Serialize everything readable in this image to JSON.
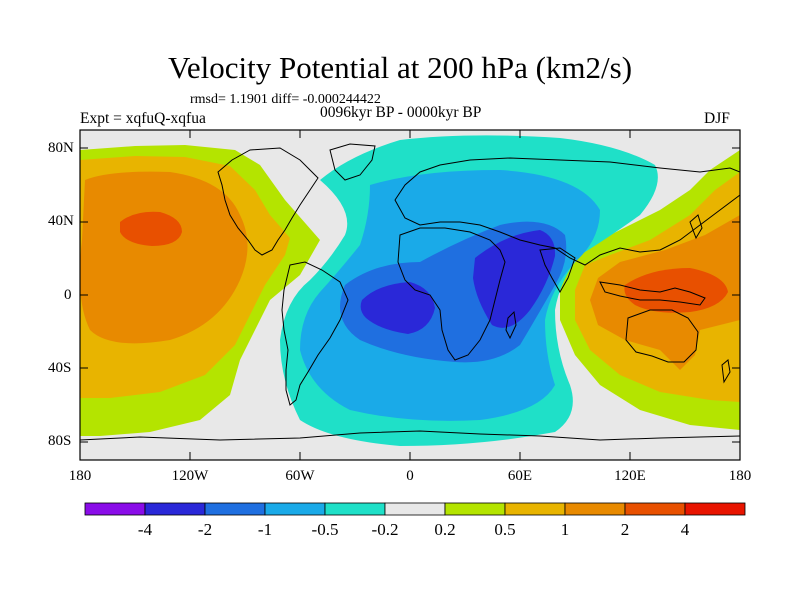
{
  "title": "Velocity Potential at 200 hPa (km2/s)",
  "stats_line": "rmsd= 1.1901 diff= -0.000244422",
  "experiment_label": "Expt = xqfuQ-xqfua",
  "period_label": "0096kyr BP - 0000kyr BP",
  "season_label": "DJF",
  "axes": {
    "x_ticks": [
      "180",
      "120W",
      "60W",
      "0",
      "60E",
      "120E",
      "180"
    ],
    "y_ticks": [
      "80N",
      "40N",
      "0",
      "40S",
      "80S"
    ]
  },
  "colorbar": {
    "colors": [
      "#8a0ce8",
      "#2a28d8",
      "#1f6fe0",
      "#1aaae8",
      "#1fe0c8",
      "#e8e8e8",
      "#b4e400",
      "#e8b400",
      "#e88a00",
      "#e85000",
      "#e81400"
    ],
    "labels": [
      "-4",
      "-2",
      "-1",
      "-0.5",
      "-0.2",
      "0.2",
      "0.5",
      "1",
      "2",
      "4"
    ]
  },
  "map": {
    "background_color": "#e8e8e8",
    "contour_levels": [
      "-4",
      "-2",
      "-1",
      "-0.5",
      "-0.2",
      "0.2",
      "0.5",
      "1",
      "2",
      "4"
    ]
  }
}
